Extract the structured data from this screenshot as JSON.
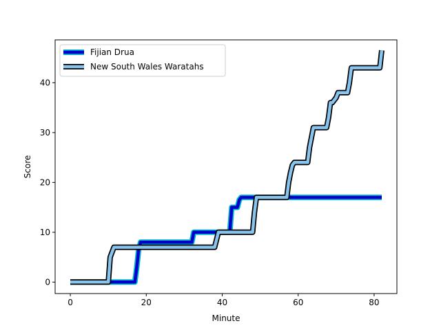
{
  "chart_data": {
    "type": "line",
    "xlabel": "Minute",
    "ylabel": "Score",
    "xlim": [
      -4,
      86
    ],
    "ylim": [
      -2.3,
      48.6
    ],
    "xticks": [
      0,
      20,
      40,
      60,
      80
    ],
    "yticks": [
      0,
      10,
      20,
      30,
      40
    ],
    "legend_position": "upper-left",
    "grid": false,
    "series": [
      {
        "name": "Fijian Drua",
        "outer_color": "#00b8c8",
        "inner_color": "#0000cc",
        "x": [
          0,
          17,
          17.5,
          18,
          18.5,
          19,
          32,
          32.5,
          38,
          38.5,
          42,
          42.5,
          43.5,
          44,
          44.5,
          45,
          82
        ],
        "y": [
          0,
          0,
          3,
          6.5,
          8,
          8,
          8,
          10,
          10,
          10,
          10,
          15,
          15,
          15,
          16.5,
          17,
          17
        ]
      },
      {
        "name": "New South Wales Waratahs",
        "outer_color": "#000000",
        "inner_color": "#87c5ee",
        "x": [
          0,
          10,
          10.5,
          11.5,
          12,
          38,
          39,
          48,
          48.5,
          49,
          57,
          57.5,
          58,
          58.5,
          59,
          62.5,
          63,
          63.5,
          64,
          67.5,
          68,
          68.5,
          69,
          70,
          70.5,
          71,
          73,
          73.5,
          74,
          81.5,
          82
        ],
        "y": [
          0,
          0,
          5,
          7,
          7,
          7,
          10,
          10,
          14,
          17,
          17,
          20,
          22,
          23.5,
          24,
          24,
          27,
          29,
          31,
          31,
          33,
          36,
          36,
          37,
          38,
          38,
          38,
          40,
          43,
          43,
          46.5
        ]
      }
    ]
  }
}
